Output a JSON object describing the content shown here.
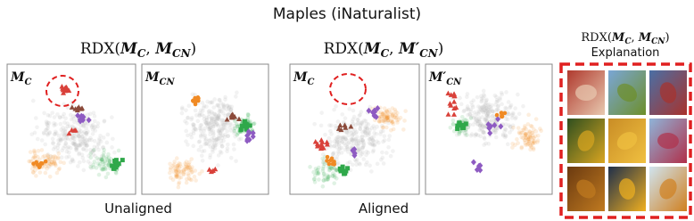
{
  "title": "Maples (iNaturalist)",
  "groups": [
    {
      "heading": [
        "RDX(",
        "M",
        "C",
        ", ",
        "M",
        "CN",
        ")"
      ],
      "panels": [
        {
          "label": [
            "M",
            "C"
          ]
        },
        {
          "label": [
            "M",
            "CN"
          ]
        }
      ],
      "caption": "Unaligned"
    },
    {
      "heading": [
        "RDX(",
        "M",
        "C",
        ", ",
        "M′",
        "CN",
        ")"
      ],
      "panels": [
        {
          "label": [
            "M",
            "C"
          ]
        },
        {
          "label": [
            "M′",
            "CN"
          ]
        }
      ],
      "caption": "Aligned"
    }
  ],
  "explanation": {
    "heading": [
      "RDX(",
      "M",
      "C",
      ", ",
      "M",
      "CN",
      ")"
    ],
    "subtitle": "Explanation"
  }
}
